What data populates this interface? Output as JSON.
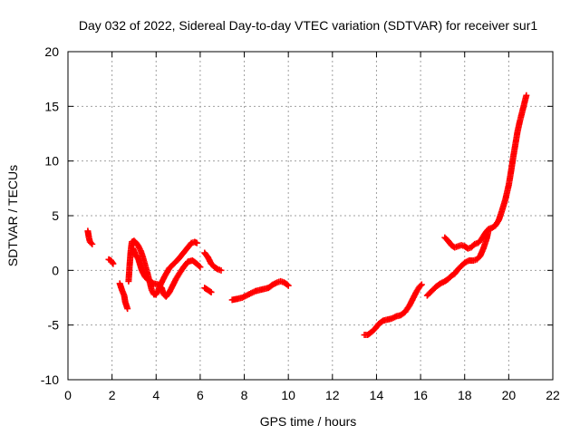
{
  "chart_data": {
    "type": "scatter",
    "title": "Day 032 of 2022, Sidereal Day-to-day VTEC variation (SDTVAR) for receiver sur1",
    "xlabel": "GPS time / hours",
    "ylabel": "SDTVAR / TECUs",
    "xlim": [
      0,
      22
    ],
    "ylim": [
      -10,
      20
    ],
    "xticks": [
      "0",
      "2",
      "4",
      "6",
      "8",
      "10",
      "12",
      "14",
      "16",
      "18",
      "20",
      "22"
    ],
    "yticks": [
      "-10",
      "-5",
      "0",
      "5",
      "10",
      "15",
      "20"
    ],
    "grid": true,
    "marker": "plus",
    "color": "#ff0000",
    "series": [
      {
        "name": "SDTVAR",
        "segments": [
          [
            [
              0.9,
              3.6
            ],
            [
              0.95,
              3.0
            ],
            [
              1.0,
              2.6
            ],
            [
              1.1,
              2.4
            ]
          ],
          [
            [
              1.85,
              1.0
            ],
            [
              1.95,
              0.9
            ],
            [
              2.05,
              0.6
            ]
          ],
          [
            [
              2.35,
              -1.2
            ],
            [
              2.45,
              -1.8
            ],
            [
              2.55,
              -2.3
            ],
            [
              2.6,
              -2.9
            ],
            [
              2.7,
              -3.5
            ]
          ],
          [
            [
              2.75,
              -1.0
            ],
            [
              2.8,
              0.5
            ],
            [
              2.85,
              1.8
            ],
            [
              2.9,
              2.6
            ],
            [
              3.0,
              2.7
            ],
            [
              3.1,
              2.5
            ],
            [
              3.2,
              2.2
            ],
            [
              3.3,
              1.8
            ],
            [
              3.4,
              1.2
            ],
            [
              3.5,
              0.5
            ],
            [
              3.6,
              -0.2
            ],
            [
              3.7,
              -1.0
            ],
            [
              3.8,
              -1.8
            ],
            [
              3.9,
              -2.2
            ],
            [
              4.0,
              -2.2
            ],
            [
              4.1,
              -1.8
            ],
            [
              4.2,
              -1.3
            ],
            [
              4.4,
              -0.5
            ],
            [
              4.6,
              0.2
            ],
            [
              4.8,
              0.6
            ],
            [
              5.0,
              1.0
            ],
            [
              5.2,
              1.5
            ],
            [
              5.4,
              2.0
            ],
            [
              5.6,
              2.5
            ],
            [
              5.75,
              2.6
            ],
            [
              5.85,
              2.5
            ]
          ],
          [
            [
              2.95,
              2.0
            ],
            [
              3.05,
              1.5
            ],
            [
              3.2,
              1.0
            ],
            [
              3.35,
              0.0
            ],
            [
              3.5,
              -0.6
            ],
            [
              3.7,
              -1.0
            ],
            [
              3.9,
              -1.2
            ],
            [
              4.1,
              -1.3
            ],
            [
              4.25,
              -1.6
            ],
            [
              4.35,
              -2.2
            ],
            [
              4.45,
              -2.4
            ],
            [
              4.6,
              -2.0
            ],
            [
              4.75,
              -1.4
            ],
            [
              4.9,
              -0.8
            ],
            [
              5.05,
              -0.3
            ],
            [
              5.25,
              0.3
            ],
            [
              5.45,
              0.8
            ],
            [
              5.65,
              0.9
            ],
            [
              5.85,
              0.6
            ],
            [
              6.0,
              0.3
            ]
          ],
          [
            [
              6.2,
              -1.6
            ],
            [
              6.35,
              -1.8
            ],
            [
              6.5,
              -2.0
            ]
          ],
          [
            [
              6.2,
              1.6
            ],
            [
              6.35,
              1.2
            ],
            [
              6.5,
              0.6
            ],
            [
              6.65,
              0.3
            ],
            [
              6.8,
              0.1
            ],
            [
              6.95,
              0.0
            ]
          ],
          [
            [
              7.45,
              -2.7
            ],
            [
              7.7,
              -2.6
            ],
            [
              7.9,
              -2.5
            ],
            [
              8.1,
              -2.3
            ],
            [
              8.3,
              -2.1
            ],
            [
              8.5,
              -1.9
            ],
            [
              8.7,
              -1.8
            ],
            [
              8.9,
              -1.7
            ],
            [
              9.1,
              -1.6
            ],
            [
              9.3,
              -1.3
            ],
            [
              9.5,
              -1.1
            ],
            [
              9.65,
              -1.0
            ],
            [
              9.8,
              -1.1
            ],
            [
              9.95,
              -1.3
            ],
            [
              10.0,
              -1.4
            ]
          ],
          [
            [
              13.45,
              -5.9
            ],
            [
              13.6,
              -5.9
            ],
            [
              13.8,
              -5.6
            ],
            [
              13.95,
              -5.3
            ],
            [
              14.1,
              -4.9
            ],
            [
              14.3,
              -4.6
            ],
            [
              14.5,
              -4.5
            ],
            [
              14.7,
              -4.4
            ],
            [
              14.9,
              -4.2
            ],
            [
              15.1,
              -4.1
            ],
            [
              15.3,
              -3.8
            ],
            [
              15.5,
              -3.2
            ],
            [
              15.65,
              -2.6
            ],
            [
              15.8,
              -2.0
            ],
            [
              15.95,
              -1.5
            ],
            [
              16.05,
              -1.3
            ]
          ],
          [
            [
              16.3,
              -2.3
            ],
            [
              16.5,
              -1.9
            ],
            [
              16.7,
              -1.5
            ],
            [
              16.9,
              -1.2
            ],
            [
              17.1,
              -1.0
            ],
            [
              17.25,
              -0.8
            ],
            [
              17.4,
              -0.5
            ],
            [
              17.55,
              -0.3
            ],
            [
              17.7,
              0.1
            ],
            [
              17.85,
              0.4
            ],
            [
              18.0,
              0.7
            ],
            [
              18.2,
              0.9
            ],
            [
              18.4,
              0.9
            ],
            [
              18.55,
              1.0
            ],
            [
              18.7,
              1.3
            ],
            [
              18.85,
              2.0
            ],
            [
              19.0,
              2.9
            ],
            [
              19.1,
              3.8
            ],
            [
              19.25,
              3.9
            ],
            [
              19.4,
              4.1
            ],
            [
              19.55,
              4.6
            ],
            [
              19.7,
              5.5
            ],
            [
              19.85,
              6.5
            ],
            [
              20.0,
              7.8
            ],
            [
              20.1,
              9.0
            ],
            [
              20.2,
              10.3
            ],
            [
              20.3,
              11.5
            ],
            [
              20.4,
              12.7
            ],
            [
              20.5,
              13.6
            ],
            [
              20.6,
              14.4
            ],
            [
              20.7,
              15.2
            ],
            [
              20.8,
              16.0
            ]
          ],
          [
            [
              17.1,
              3.0
            ],
            [
              17.25,
              2.7
            ],
            [
              17.4,
              2.3
            ],
            [
              17.55,
              2.1
            ],
            [
              17.7,
              2.2
            ],
            [
              17.85,
              2.3
            ],
            [
              18.0,
              2.2
            ],
            [
              18.15,
              2.0
            ],
            [
              18.3,
              2.1
            ],
            [
              18.45,
              2.4
            ],
            [
              18.6,
              2.5
            ],
            [
              18.75,
              2.8
            ],
            [
              18.9,
              3.3
            ],
            [
              19.05,
              3.7
            ]
          ]
        ]
      }
    ]
  }
}
